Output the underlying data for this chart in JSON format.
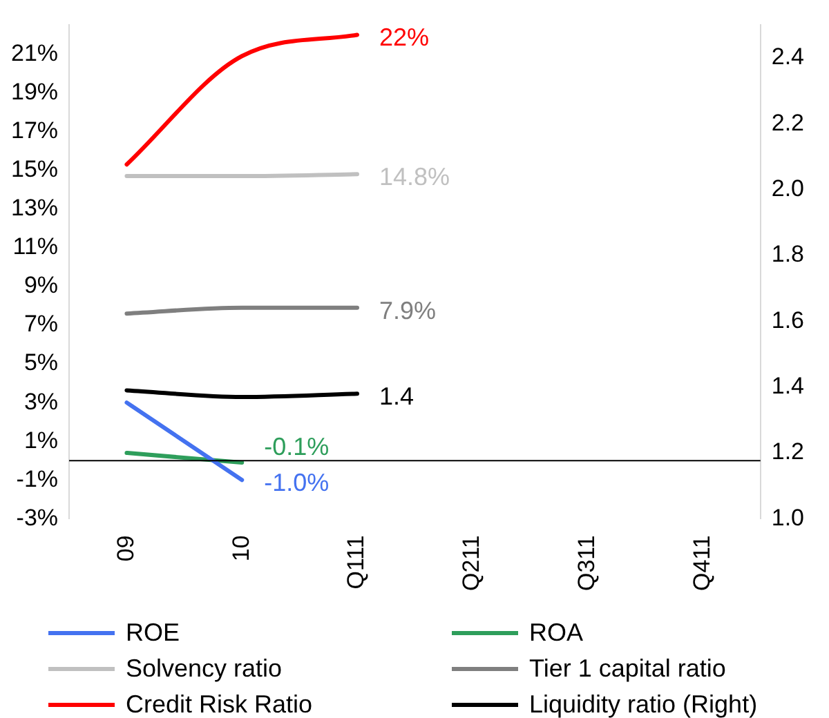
{
  "chart_data": {
    "type": "line",
    "categories": [
      "09",
      "10",
      "Q111",
      "Q211",
      "Q311",
      "Q411"
    ],
    "ylim": [
      -3,
      22.5
    ],
    "yticks": [
      {
        "value": -3,
        "label": "-3%"
      },
      {
        "value": -1,
        "label": "-1%"
      },
      {
        "value": 1,
        "label": "1%"
      },
      {
        "value": 3,
        "label": "3%"
      },
      {
        "value": 5,
        "label": "5%"
      },
      {
        "value": 7,
        "label": "7%"
      },
      {
        "value": 9,
        "label": "9%"
      },
      {
        "value": 11,
        "label": "11%"
      },
      {
        "value": 13,
        "label": "13%"
      },
      {
        "value": 15,
        "label": "15%"
      },
      {
        "value": 17,
        "label": "17%"
      },
      {
        "value": 19,
        "label": "19%"
      },
      {
        "value": 21,
        "label": "21%"
      }
    ],
    "y2lim": [
      1.0,
      2.5
    ],
    "y2ticks": [
      {
        "value": 1.0,
        "label": "1.0"
      },
      {
        "value": 1.2,
        "label": "1.2"
      },
      {
        "value": 1.4,
        "label": "1.4"
      },
      {
        "value": 1.6,
        "label": "1.6"
      },
      {
        "value": 1.8,
        "label": "1.8"
      },
      {
        "value": 2.0,
        "label": "2.0"
      },
      {
        "value": 2.2,
        "label": "2.2"
      },
      {
        "value": 2.4,
        "label": "2.4"
      }
    ],
    "grid": false,
    "legend": "bottom",
    "marker": "none",
    "line_style": "solid",
    "ref_lines": [
      {
        "axis": "y",
        "value": 0,
        "color": "#000000"
      }
    ],
    "series": [
      {
        "name": "ROE",
        "color": "#4472f0",
        "values": [
          3.0,
          -1.0,
          null,
          null,
          null,
          null
        ],
        "value_labels": [
          null,
          "-1.0%",
          null,
          null,
          null,
          null
        ]
      },
      {
        "name": "ROA",
        "color": "#2e9e5b",
        "values": [
          0.4,
          -0.1,
          null,
          null,
          null,
          null
        ],
        "value_labels": [
          null,
          "-0.1%",
          null,
          null,
          null,
          null
        ]
      },
      {
        "name": "Solvency ratio",
        "color": "#c0c0c0",
        "values": [
          14.7,
          14.7,
          14.8,
          null,
          null,
          null
        ],
        "value_labels": [
          null,
          null,
          "14.8%",
          null,
          null,
          null
        ]
      },
      {
        "name": "Tier 1 capital ratio",
        "color": "#7f7f7f",
        "values": [
          7.6,
          7.9,
          7.9,
          null,
          null,
          null
        ],
        "value_labels": [
          null,
          null,
          "7.9%",
          null,
          null,
          null
        ]
      },
      {
        "name": "Credit Risk Ratio",
        "color": "#ff0000",
        "values": [
          15.3,
          20.9,
          22.0,
          null,
          null,
          null
        ],
        "value_labels": [
          null,
          null,
          "22%",
          null,
          null,
          null
        ]
      },
      {
        "name": "Liquidity ratio (Right)",
        "color": "#000000",
        "axis": "y2",
        "values": [
          1.39,
          1.37,
          1.38,
          null,
          null,
          null
        ],
        "value_labels": [
          null,
          null,
          "1.4",
          null,
          null,
          null
        ]
      }
    ]
  }
}
